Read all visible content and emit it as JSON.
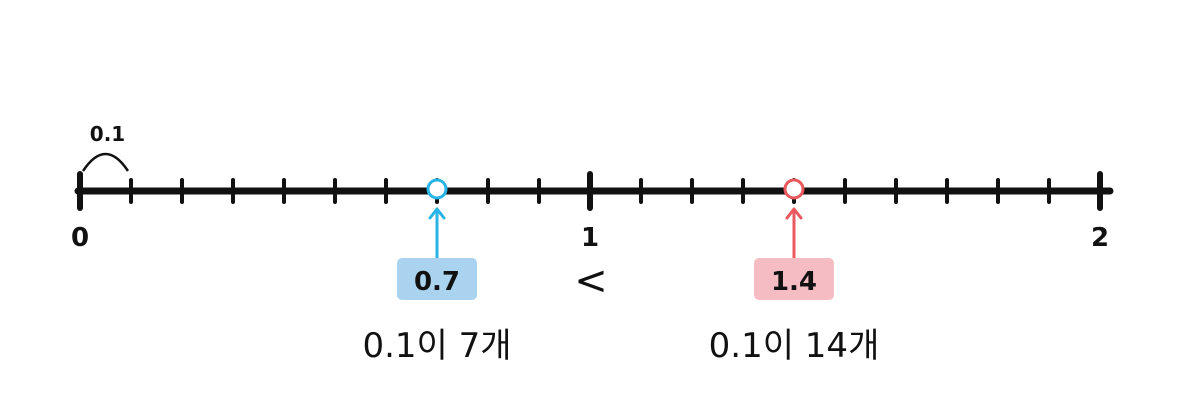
{
  "number_line": {
    "start": 0,
    "end": 2,
    "step": 0.1,
    "tick_labels": [
      "0",
      "1",
      "2"
    ],
    "interval_label": "0.1"
  },
  "markers": [
    {
      "value": 0.7,
      "label": "0.7",
      "caption": "0.1이 7개",
      "color": "#27b4e6",
      "box_color": "#a9d3ef"
    },
    {
      "value": 1.4,
      "label": "1.4",
      "caption": "0.1이 14개",
      "color": "#e8585c",
      "box_color": "#f5bcc4"
    }
  ],
  "comparison": {
    "symbol": "<"
  }
}
